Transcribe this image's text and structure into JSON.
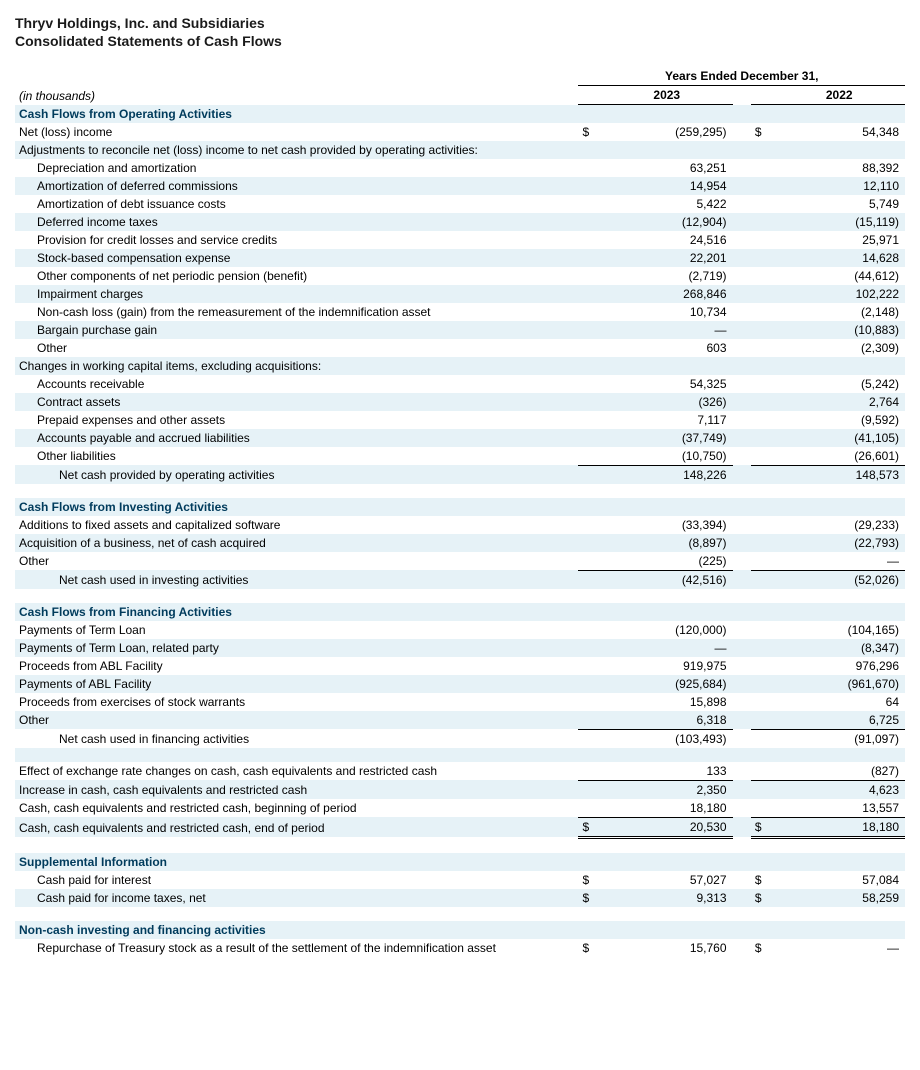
{
  "title1": "Thryv Holdings, Inc. and Subsidiaries",
  "title2": "Consolidated Statements of Cash Flows",
  "currency": "$",
  "colors": {
    "shade": "#e6f2f7",
    "header_text": "#003b5c",
    "border": "#000000"
  },
  "columns": {
    "period_header": "Years Ended December 31,",
    "year1": "2023",
    "year2": "2022",
    "unit_note": "(in thousands)"
  },
  "rows": [
    {
      "type": "section",
      "label": "Cash Flows from Operating Activities",
      "shade": true
    },
    {
      "label": "Net (loss) income",
      "sym": "$",
      "v1": "(259,295)",
      "v2": "54,348"
    },
    {
      "label": "Adjustments to reconcile net (loss) income to net cash provided by operating activities:",
      "shade": true
    },
    {
      "label": "Depreciation and amortization",
      "indent": 1,
      "v1": "63,251",
      "v2": "88,392"
    },
    {
      "label": "Amortization of deferred commissions",
      "indent": 1,
      "v1": "14,954",
      "v2": "12,110",
      "shade": true
    },
    {
      "label": "Amortization of debt issuance costs",
      "indent": 1,
      "v1": "5,422",
      "v2": "5,749"
    },
    {
      "label": "Deferred income taxes",
      "indent": 1,
      "v1": "(12,904)",
      "v2": "(15,119)",
      "shade": true
    },
    {
      "label": "Provision for credit losses and service credits",
      "indent": 1,
      "v1": "24,516",
      "v2": "25,971"
    },
    {
      "label": "Stock-based compensation expense",
      "indent": 1,
      "v1": "22,201",
      "v2": "14,628",
      "shade": true
    },
    {
      "label": "Other components of net periodic pension (benefit)",
      "indent": 1,
      "v1": "(2,719)",
      "v2": "(44,612)"
    },
    {
      "label": "Impairment charges",
      "indent": 1,
      "v1": "268,846",
      "v2": "102,222",
      "shade": true
    },
    {
      "label": "Non-cash loss (gain) from the remeasurement of the indemnification asset",
      "indent": 1,
      "v1": "10,734",
      "v2": "(2,148)"
    },
    {
      "label": "Bargain purchase gain",
      "indent": 1,
      "v1": "—",
      "v2": "(10,883)",
      "shade": true
    },
    {
      "label": "Other",
      "indent": 1,
      "v1": "603",
      "v2": "(2,309)"
    },
    {
      "label": "Changes in working capital items, excluding acquisitions:",
      "shade": true
    },
    {
      "label": "Accounts receivable",
      "indent": 1,
      "v1": "54,325",
      "v2": "(5,242)"
    },
    {
      "label": "Contract assets",
      "indent": 1,
      "v1": "(326)",
      "v2": "2,764",
      "shade": true
    },
    {
      "label": "Prepaid expenses and other assets",
      "indent": 1,
      "v1": "7,117",
      "v2": "(9,592)"
    },
    {
      "label": "Accounts payable and accrued liabilities",
      "indent": 1,
      "v1": "(37,749)",
      "v2": "(41,105)",
      "shade": true
    },
    {
      "label": "Other liabilities",
      "indent": 1,
      "v1": "(10,750)",
      "v2": "(26,601)",
      "underline": "bot"
    },
    {
      "label": "Net cash provided by operating activities",
      "indent": 2,
      "v1": "148,226",
      "v2": "148,573",
      "shade": true
    },
    {
      "type": "spacer"
    },
    {
      "type": "section",
      "label": "Cash Flows from Investing Activities",
      "shade": true
    },
    {
      "label": "Additions to fixed assets and capitalized software",
      "v1": "(33,394)",
      "v2": "(29,233)"
    },
    {
      "label": "Acquisition of a business, net of cash acquired",
      "v1": "(8,897)",
      "v2": "(22,793)",
      "shade": true
    },
    {
      "label": "Other",
      "v1": "(225)",
      "v2": "—",
      "underline": "bot"
    },
    {
      "label": "Net cash used in investing activities",
      "indent": 2,
      "v1": "(42,516)",
      "v2": "(52,026)",
      "shade": true
    },
    {
      "type": "spacer"
    },
    {
      "type": "section",
      "label": "Cash Flows from Financing Activities",
      "shade": true
    },
    {
      "label": "Payments of Term Loan",
      "v1": "(120,000)",
      "v2": "(104,165)"
    },
    {
      "label": "Payments of Term Loan, related party",
      "v1": "—",
      "v2": "(8,347)",
      "shade": true
    },
    {
      "label": "Proceeds from ABL Facility",
      "v1": "919,975",
      "v2": "976,296"
    },
    {
      "label": "Payments of ABL Facility",
      "v1": "(925,684)",
      "v2": "(961,670)",
      "shade": true
    },
    {
      "label": "Proceeds from exercises of stock warrants",
      "v1": "15,898",
      "v2": "64"
    },
    {
      "label": "Other",
      "v1": "6,318",
      "v2": "6,725",
      "shade": true,
      "underline": "bot"
    },
    {
      "label": "Net cash used in financing activities",
      "indent": 2,
      "v1": "(103,493)",
      "v2": "(91,097)"
    },
    {
      "type": "spacer-shade"
    },
    {
      "label": "Effect of exchange rate changes on cash, cash equivalents and restricted cash",
      "v1": "133",
      "v2": "(827)",
      "underline": "bot"
    },
    {
      "label": "Increase in cash, cash equivalents and restricted cash",
      "v1": "2,350",
      "v2": "4,623",
      "shade": true
    },
    {
      "label": "Cash, cash equivalents and restricted cash, beginning of period",
      "v1": "18,180",
      "v2": "13,557",
      "underline": "bot"
    },
    {
      "label": "Cash, cash equivalents and restricted cash, end of period",
      "sym": "$",
      "v1": "20,530",
      "v2": "18,180",
      "shade": true,
      "underline": "dbl"
    },
    {
      "type": "spacer"
    },
    {
      "type": "section",
      "label": "Supplemental Information",
      "shade": true
    },
    {
      "label": "Cash paid for interest",
      "indent": 1,
      "sym": "$",
      "v1": "57,027",
      "v2": "57,084"
    },
    {
      "label": "Cash paid for income taxes, net",
      "indent": 1,
      "sym": "$",
      "v1": "9,313",
      "v2": "58,259",
      "shade": true
    },
    {
      "type": "spacer"
    },
    {
      "type": "section",
      "label": "Non-cash investing and financing activities",
      "shade": true
    },
    {
      "label": "Repurchase of Treasury stock as a result of the settlement of the indemnification asset",
      "indent": 1,
      "sym": "$",
      "v1": "15,760",
      "v2": "—"
    }
  ]
}
